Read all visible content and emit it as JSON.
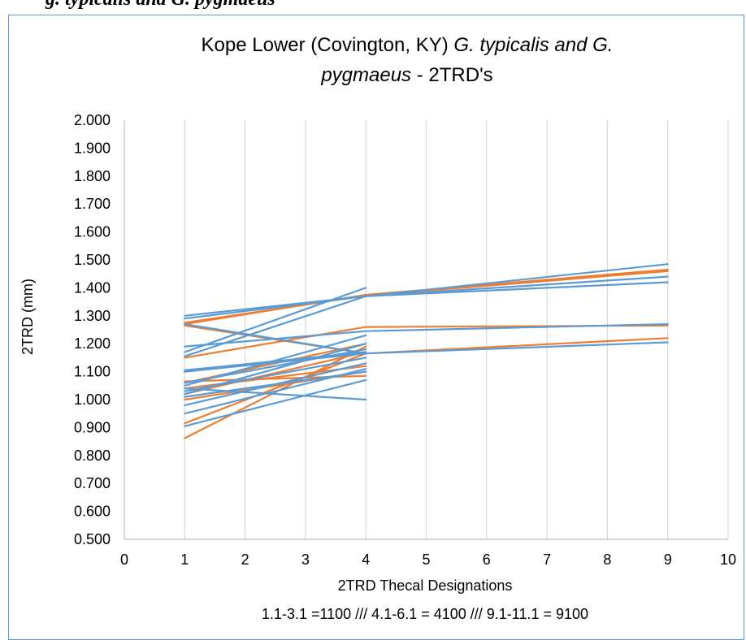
{
  "page": {
    "top_caption": "g. typicalis and G. pygmaeus"
  },
  "chart_data": {
    "type": "line",
    "title_part1": "Kope Lower (Covington, KY) ",
    "title_part2": "G. typicalis and G.",
    "title_line2_part1": "pygmaeus",
    "title_line2_part2": " - 2TRD's",
    "xlabel": "2TRD Thecal Designations",
    "xlabel_line2": "1.1-3.1 =1100 /// 4.1-6.1 = 4100 /// 9.1-11.1 = 9100",
    "ylabel": "2TRD (mm)",
    "xlim": [
      0,
      10
    ],
    "ylim": [
      0.5,
      2.0
    ],
    "x_ticks": [
      "0",
      "1",
      "2",
      "3",
      "4",
      "5",
      "6",
      "7",
      "8",
      "9",
      "10"
    ],
    "y_ticks": [
      "0.500",
      "0.600",
      "0.700",
      "0.800",
      "0.900",
      "1.000",
      "1.100",
      "1.200",
      "1.300",
      "1.400",
      "1.500",
      "1.600",
      "1.700",
      "1.800",
      "1.900",
      "2.000"
    ],
    "grid": "vertical",
    "legend": "none",
    "colors": {
      "orange": "#ed7d31",
      "blue": "#5b9bd5",
      "grid": "#d9d9d9",
      "frame": "#5b9bd5"
    },
    "series": [
      {
        "color": "orange",
        "x": [
          1,
          4,
          9
        ],
        "y": [
          1.27,
          1.375,
          1.465
        ]
      },
      {
        "color": "orange",
        "x": [
          1,
          4,
          9
        ],
        "y": [
          1.275,
          1.372,
          1.46
        ]
      },
      {
        "color": "orange",
        "x": [
          1,
          4,
          9
        ],
        "y": [
          1.15,
          1.26,
          1.265
        ]
      },
      {
        "color": "orange",
        "x": [
          1,
          4,
          9
        ],
        "y": [
          0.915,
          1.165,
          1.22
        ]
      },
      {
        "color": "orange",
        "x": [
          1,
          4
        ],
        "y": [
          0.862,
          1.19
        ]
      },
      {
        "color": "orange",
        "x": [
          1,
          4
        ],
        "y": [
          1.265,
          1.165
        ]
      },
      {
        "color": "orange",
        "x": [
          1,
          4
        ],
        "y": [
          1.065,
          1.085
        ]
      },
      {
        "color": "orange",
        "x": [
          1,
          4
        ],
        "y": [
          1.06,
          1.2
        ]
      },
      {
        "color": "orange",
        "x": [
          1,
          4
        ],
        "y": [
          1.04,
          1.12
        ]
      },
      {
        "color": "orange",
        "x": [
          1,
          4
        ],
        "y": [
          1.02,
          1.17
        ]
      },
      {
        "color": "orange",
        "x": [
          1,
          4
        ],
        "y": [
          1.0,
          1.1
        ]
      },
      {
        "color": "orange",
        "x": [
          1,
          4
        ],
        "y": [
          1.1,
          1.17
        ]
      },
      {
        "color": "blue",
        "x": [
          1,
          4,
          9
        ],
        "y": [
          1.3,
          1.37,
          1.485
        ]
      },
      {
        "color": "blue",
        "x": [
          1,
          4,
          9
        ],
        "y": [
          1.29,
          1.37,
          1.44
        ]
      },
      {
        "color": "blue",
        "x": [
          1,
          4,
          9
        ],
        "y": [
          1.155,
          1.37,
          1.42
        ]
      },
      {
        "color": "blue",
        "x": [
          1,
          4,
          9
        ],
        "y": [
          1.19,
          1.245,
          1.27
        ]
      },
      {
        "color": "blue",
        "x": [
          1,
          4,
          9
        ],
        "y": [
          1.1,
          1.165,
          1.205
        ]
      },
      {
        "color": "blue",
        "x": [
          1,
          4
        ],
        "y": [
          1.27,
          1.165
        ]
      },
      {
        "color": "blue",
        "x": [
          1,
          4
        ],
        "y": [
          1.17,
          1.4
        ]
      },
      {
        "color": "blue",
        "x": [
          1,
          4
        ],
        "y": [
          1.105,
          1.17
        ]
      },
      {
        "color": "blue",
        "x": [
          1,
          4
        ],
        "y": [
          1.06,
          1.18
        ]
      },
      {
        "color": "blue",
        "x": [
          1,
          4
        ],
        "y": [
          1.05,
          1.23
        ]
      },
      {
        "color": "blue",
        "x": [
          1,
          4
        ],
        "y": [
          1.04,
          1.0
        ]
      },
      {
        "color": "blue",
        "x": [
          1,
          4
        ],
        "y": [
          1.03,
          1.15
        ]
      },
      {
        "color": "blue",
        "x": [
          1,
          4
        ],
        "y": [
          1.02,
          1.2
        ]
      },
      {
        "color": "blue",
        "x": [
          1,
          4
        ],
        "y": [
          1.01,
          1.1
        ]
      },
      {
        "color": "blue",
        "x": [
          1,
          4
        ],
        "y": [
          0.98,
          1.13
        ]
      },
      {
        "color": "blue",
        "x": [
          1,
          4
        ],
        "y": [
          0.95,
          1.11
        ]
      },
      {
        "color": "blue",
        "x": [
          1,
          4
        ],
        "y": [
          0.905,
          1.07
        ]
      }
    ]
  }
}
